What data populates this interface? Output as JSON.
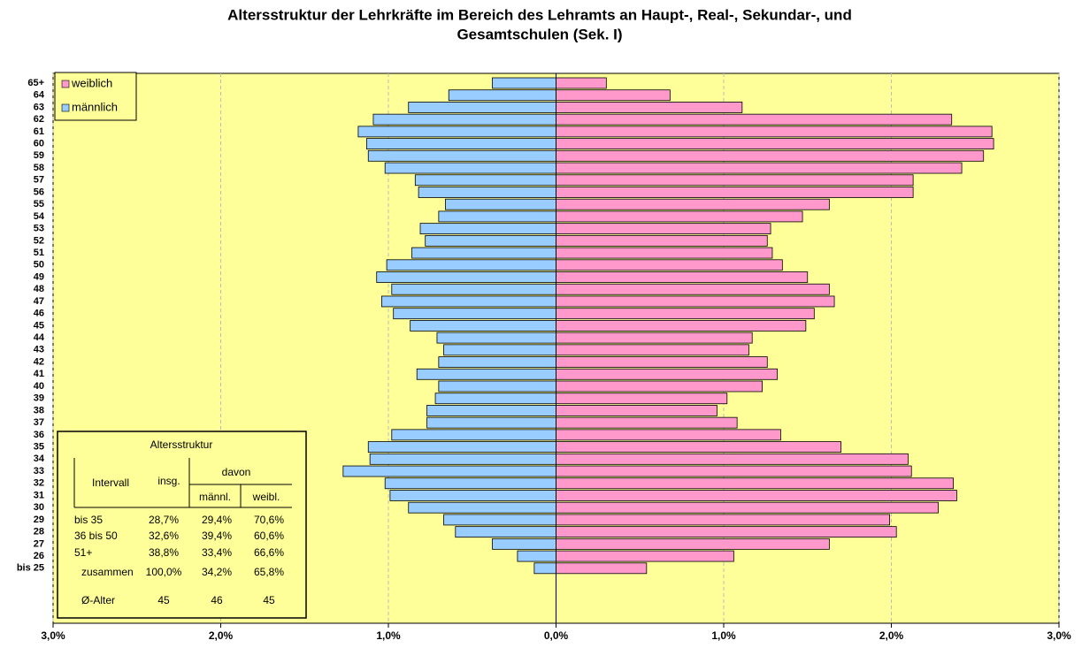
{
  "chart_data": {
    "type": "pyramid",
    "title": [
      "Altersstruktur der Lehrkräfte im Bereich des Lehramts an Haupt-, Real-, Sekundar-, und",
      "Gesamtschulen (Sek. I)"
    ],
    "categories": [
      "65+",
      "64",
      "63",
      "62",
      "61",
      "60",
      "59",
      "58",
      "57",
      "56",
      "55",
      "54",
      "53",
      "52",
      "51",
      "50",
      "49",
      "48",
      "47",
      "46",
      "45",
      "44",
      "43",
      "42",
      "41",
      "40",
      "39",
      "38",
      "37",
      "36",
      "35",
      "34",
      "33",
      "32",
      "31",
      "30",
      "29",
      "28",
      "27",
      "26",
      "bis 25"
    ],
    "series": [
      {
        "name": "weiblich",
        "color": "#ff99cc",
        "values": [
          0.3,
          0.68,
          1.11,
          2.36,
          2.6,
          2.61,
          2.55,
          2.42,
          2.13,
          2.13,
          1.63,
          1.47,
          1.28,
          1.26,
          1.29,
          1.35,
          1.5,
          1.63,
          1.66,
          1.54,
          1.49,
          1.17,
          1.15,
          1.26,
          1.32,
          1.23,
          1.02,
          0.96,
          1.08,
          1.34,
          1.7,
          2.1,
          2.12,
          2.37,
          2.39,
          2.28,
          1.99,
          2.03,
          1.63,
          1.06,
          0.54
        ]
      },
      {
        "name": "männlich",
        "color": "#99ccff",
        "values": [
          -0.38,
          -0.64,
          -0.88,
          -1.09,
          -1.18,
          -1.13,
          -1.12,
          -1.02,
          -0.84,
          -0.82,
          -0.66,
          -0.7,
          -0.81,
          -0.78,
          -0.86,
          -1.01,
          -1.07,
          -0.98,
          -1.04,
          -0.97,
          -0.87,
          -0.71,
          -0.67,
          -0.7,
          -0.83,
          -0.7,
          -0.72,
          -0.77,
          -0.77,
          -0.98,
          -1.12,
          -1.11,
          -1.27,
          -1.02,
          -0.99,
          -0.88,
          -0.67,
          -0.6,
          -0.38,
          -0.23,
          -0.13
        ]
      }
    ],
    "xlim": [
      -3,
      3
    ],
    "xticks": [
      {
        "value": -3,
        "label": "3,0%"
      },
      {
        "value": -2,
        "label": "2,0%"
      },
      {
        "value": -1,
        "label": "1,0%"
      },
      {
        "value": 0,
        "label": "0,0%"
      },
      {
        "value": 1,
        "label": "1,0%"
      },
      {
        "value": 2,
        "label": "2,0%"
      },
      {
        "value": 3,
        "label": "3,0%"
      }
    ],
    "grid": true,
    "legend": "upper left",
    "background": "#ffff99"
  },
  "table": {
    "title": "Altersstruktur",
    "header": [
      "Intervall",
      "insg.",
      "davon",
      "männl.",
      "weibl."
    ],
    "rows": [
      [
        "bis 35",
        "28,7%",
        "29,4%",
        "70,6%"
      ],
      [
        "36 bis 50",
        "32,6%",
        "39,4%",
        "60,6%"
      ],
      [
        "51+",
        "38,8%",
        "33,4%",
        "66,6%"
      ],
      [
        "zusammen",
        "100,0%",
        "34,2%",
        "65,8%"
      ],
      [
        "Ø-Alter",
        "45",
        "46",
        "45"
      ]
    ]
  }
}
